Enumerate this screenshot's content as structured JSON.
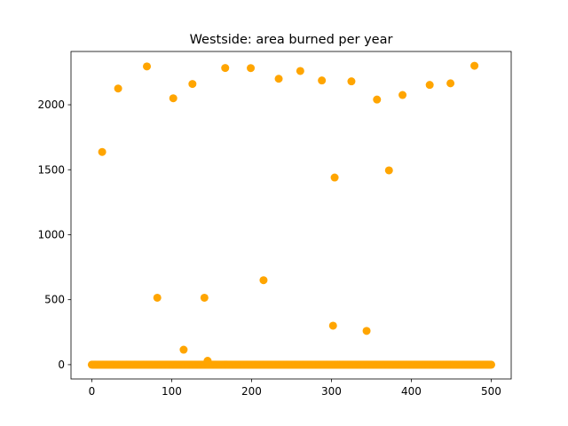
{
  "chart_data": {
    "type": "scatter",
    "title": "Westside: area burned per year",
    "xlabel": "",
    "ylabel": "",
    "xlim": [
      -26,
      525
    ],
    "ylim": [
      -110,
      2410
    ],
    "xticks": [
      0,
      100,
      200,
      300,
      400,
      500
    ],
    "yticks": [
      0,
      500,
      1000,
      1500,
      2000
    ],
    "grid": false,
    "color": "#ffa500",
    "series": [
      {
        "points": [
          [
            13,
            1637
          ],
          [
            33,
            2125
          ],
          [
            69,
            2295
          ],
          [
            82,
            515
          ],
          [
            102,
            2050
          ],
          [
            115,
            115
          ],
          [
            126,
            2160
          ],
          [
            141,
            515
          ],
          [
            145,
            30
          ],
          [
            167,
            2283
          ],
          [
            199,
            2282
          ],
          [
            215,
            650
          ],
          [
            234,
            2200
          ],
          [
            261,
            2260
          ],
          [
            288,
            2187
          ],
          [
            302,
            300
          ],
          [
            304,
            1440
          ],
          [
            325,
            2180
          ],
          [
            344,
            260
          ],
          [
            357,
            2040
          ],
          [
            372,
            1495
          ],
          [
            389,
            2075
          ],
          [
            423,
            2153
          ],
          [
            449,
            2165
          ],
          [
            479,
            2300
          ]
        ],
        "baseline": {
          "y": 0,
          "x_from": 0,
          "x_to": 500,
          "step": 1
        }
      }
    ]
  }
}
